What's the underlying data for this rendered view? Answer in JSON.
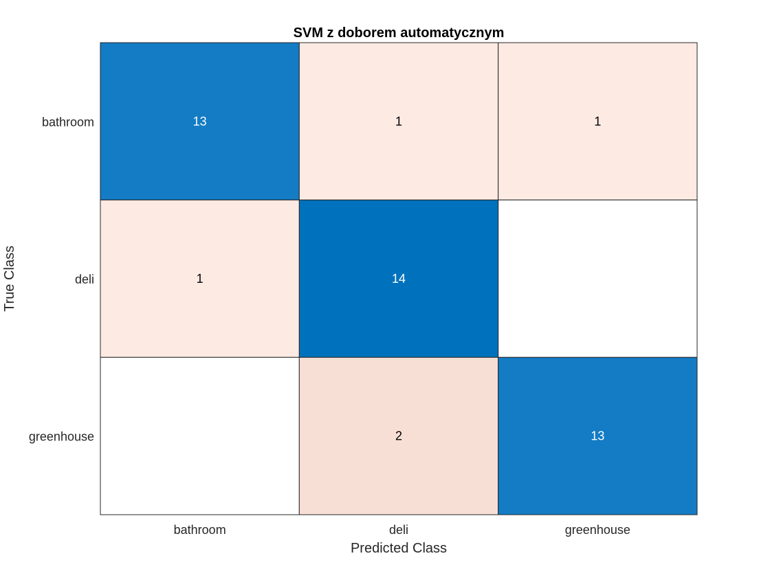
{
  "chart_data": {
    "type": "heatmap",
    "title": "SVM z doborem automatycznym",
    "xlabel": "Predicted Class",
    "ylabel": "True Class",
    "x_categories": [
      "bathroom",
      "deli",
      "greenhouse"
    ],
    "y_categories": [
      "bathroom",
      "deli",
      "greenhouse"
    ],
    "matrix": [
      [
        13,
        1,
        1
      ],
      [
        1,
        14,
        0
      ],
      [
        0,
        2,
        13
      ]
    ],
    "colors": {
      "diagonal_high": "#0072bd",
      "off_diagonal_low": "#fceae3",
      "off_diagonal_mid": "#f8dfd5",
      "empty": "#ffffff",
      "light_text": "#ffffff",
      "dark_text": "#000000",
      "cell_border": "#262626"
    }
  }
}
